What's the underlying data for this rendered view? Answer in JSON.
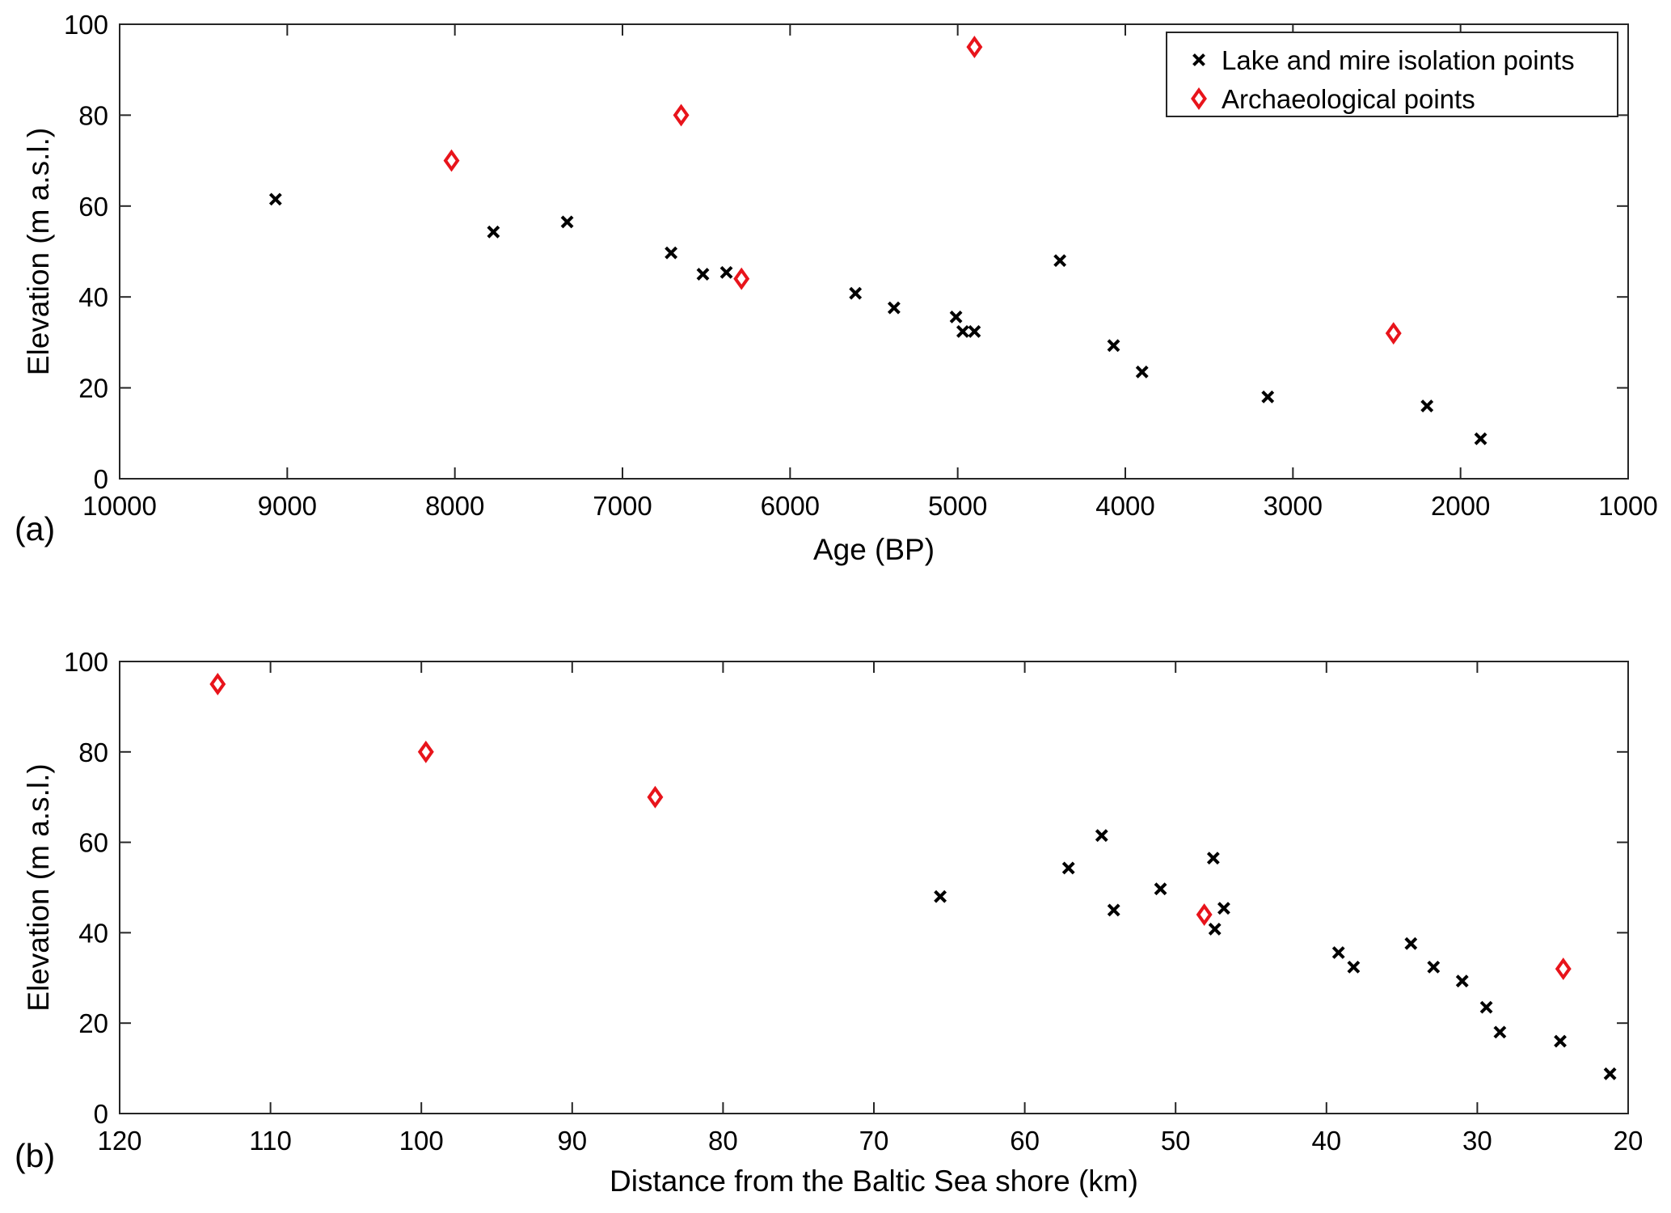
{
  "chart_data": [
    {
      "panel_label": "(a)",
      "type": "scatter",
      "xlabel": "Age (BP)",
      "ylabel": "Elevation (m a.s.l.)",
      "xlim": [
        10000,
        1000
      ],
      "ylim": [
        0,
        100
      ],
      "x_reversed": true,
      "xticks": [
        "10000",
        "9000",
        "8000",
        "7000",
        "6000",
        "5000",
        "4000",
        "3000",
        "2000",
        "1000"
      ],
      "yticks": [
        "0",
        "20",
        "40",
        "60",
        "80",
        "100"
      ],
      "legend": {
        "position": "top-right",
        "entries": [
          {
            "label": "Lake and mire isolation points",
            "marker": "x",
            "color": "#000000"
          },
          {
            "label": "Archaeological points",
            "marker": "diamond",
            "color": "#e8141b"
          }
        ]
      },
      "series": [
        {
          "name": "Lake and mire isolation points",
          "marker": "x",
          "color": "#000000",
          "points": [
            [
              9070,
              61.5
            ],
            [
              7770,
              54.3
            ],
            [
              7330,
              56.5
            ],
            [
              6710,
              49.7
            ],
            [
              6520,
              45.0
            ],
            [
              6380,
              45.4
            ],
            [
              5610,
              40.8
            ],
            [
              5380,
              37.6
            ],
            [
              5010,
              35.6
            ],
            [
              4970,
              32.4
            ],
            [
              4900,
              32.4
            ],
            [
              4390,
              48.0
            ],
            [
              4070,
              29.3
            ],
            [
              3900,
              23.5
            ],
            [
              3150,
              18.0
            ],
            [
              2200,
              16.0
            ],
            [
              1880,
              8.8
            ]
          ]
        },
        {
          "name": "Archaeological points",
          "marker": "diamond",
          "color": "#e8141b",
          "points": [
            [
              8020,
              70.0
            ],
            [
              6650,
              80.0
            ],
            [
              4900,
              95.0
            ],
            [
              6290,
              44.0
            ],
            [
              2400,
              32.0
            ]
          ]
        }
      ]
    },
    {
      "panel_label": "(b)",
      "type": "scatter",
      "xlabel": "Distance from the Baltic Sea shore (km)",
      "ylabel": "Elevation (m a.s.l.)",
      "xlim": [
        120,
        20
      ],
      "ylim": [
        0,
        100
      ],
      "x_reversed": true,
      "xticks": [
        "120",
        "110",
        "100",
        "90",
        "80",
        "70",
        "60",
        "50",
        "40",
        "30",
        "20"
      ],
      "yticks": [
        "0",
        "20",
        "40",
        "60",
        "80",
        "100"
      ],
      "series": [
        {
          "name": "Lake and mire isolation points",
          "marker": "x",
          "color": "#000000",
          "points": [
            [
              65.6,
              48.0
            ],
            [
              57.1,
              54.3
            ],
            [
              54.9,
              61.5
            ],
            [
              54.1,
              45.0
            ],
            [
              51.0,
              49.7
            ],
            [
              47.5,
              56.5
            ],
            [
              47.4,
              40.8
            ],
            [
              46.8,
              45.4
            ],
            [
              39.2,
              35.6
            ],
            [
              38.2,
              32.4
            ],
            [
              34.4,
              37.6
            ],
            [
              32.9,
              32.4
            ],
            [
              31.0,
              29.3
            ],
            [
              29.4,
              23.5
            ],
            [
              28.5,
              18.0
            ],
            [
              24.5,
              16.0
            ],
            [
              21.2,
              8.8
            ]
          ]
        },
        {
          "name": "Archaeological points",
          "marker": "diamond",
          "color": "#e8141b",
          "points": [
            [
              113.5,
              95.0
            ],
            [
              99.7,
              80.0
            ],
            [
              84.5,
              70.0
            ],
            [
              48.1,
              44.0
            ],
            [
              24.3,
              32.0
            ]
          ]
        }
      ]
    }
  ]
}
